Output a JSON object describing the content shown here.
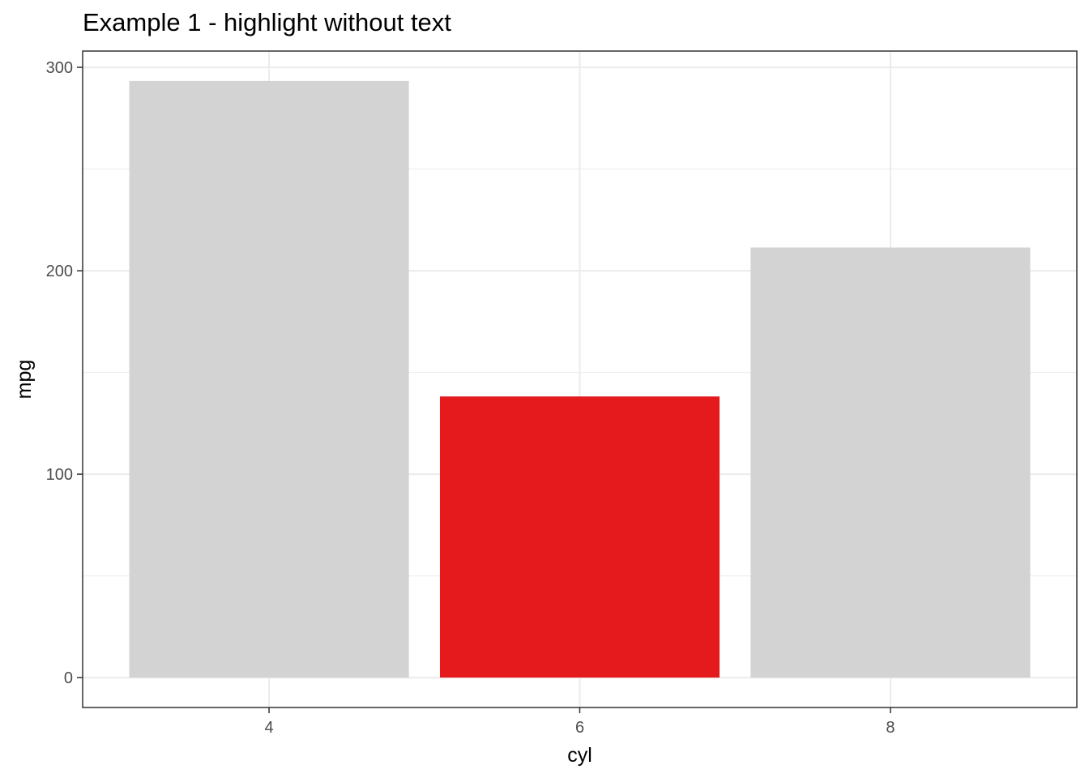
{
  "chart_data": {
    "type": "bar",
    "title": "Example 1 - highlight without text",
    "xlabel": "cyl",
    "ylabel": "mpg",
    "categories": [
      "4",
      "6",
      "8"
    ],
    "values": [
      293.3,
      138.2,
      211.4
    ],
    "highlight_index": 1,
    "colors": {
      "default": "#d3d3d3",
      "highlight": "#e41a1c",
      "grid": "#ebebeb",
      "panel_border": "#333333"
    },
    "ylim": [
      -14.7,
      308.0
    ],
    "y_ticks": [
      0,
      100,
      200,
      300
    ],
    "y_minor_ticks": [
      50,
      150,
      250
    ],
    "grid": true,
    "legend": "none"
  }
}
